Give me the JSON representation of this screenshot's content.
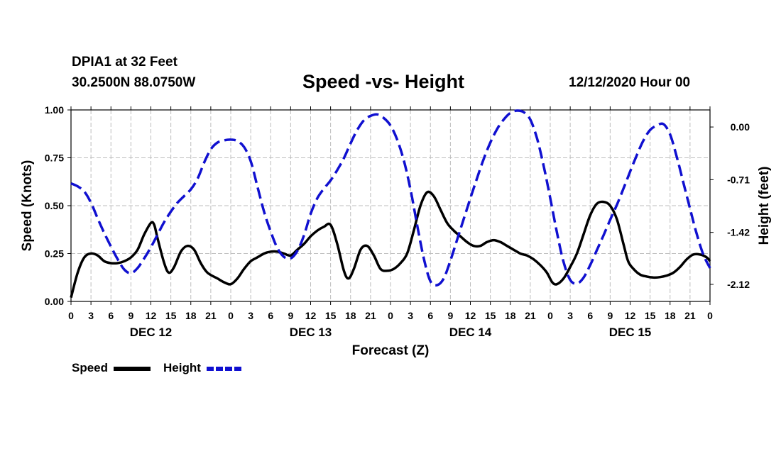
{
  "header": {
    "station": "DPIA1 at 32 Feet",
    "coordinates": "30.2500N 88.0750W",
    "date": "12/12/2020 Hour 00"
  },
  "legend": {
    "speed_label": "Speed",
    "height_label": "Height"
  },
  "colors": {
    "speed": "#000000",
    "height": "#1010d0",
    "grid": "#bdbdbd"
  },
  "chart_data": {
    "type": "line",
    "title": "Speed -vs- Height",
    "xlabel": "Forecast (Z)",
    "ylabel": "Speed (Knots)",
    "y2label": "Height (feet)",
    "grid": true,
    "legend_position": "bottom-left",
    "x_range_hours": [
      0,
      96
    ],
    "ylim": [
      0,
      1
    ],
    "y2lim": [
      -2.35,
      0.23
    ],
    "x_ticks": [
      {
        "hour": 0,
        "label": "0"
      },
      {
        "hour": 3,
        "label": "3"
      },
      {
        "hour": 6,
        "label": "6"
      },
      {
        "hour": 9,
        "label": "9"
      },
      {
        "hour": 12,
        "label": "12"
      },
      {
        "hour": 15,
        "label": "15"
      },
      {
        "hour": 18,
        "label": "18"
      },
      {
        "hour": 21,
        "label": "21"
      },
      {
        "hour": 24,
        "label": "0"
      },
      {
        "hour": 27,
        "label": "3"
      },
      {
        "hour": 30,
        "label": "6"
      },
      {
        "hour": 33,
        "label": "9"
      },
      {
        "hour": 36,
        "label": "12"
      },
      {
        "hour": 39,
        "label": "15"
      },
      {
        "hour": 42,
        "label": "18"
      },
      {
        "hour": 45,
        "label": "21"
      },
      {
        "hour": 48,
        "label": "0"
      },
      {
        "hour": 51,
        "label": "3"
      },
      {
        "hour": 54,
        "label": "6"
      },
      {
        "hour": 57,
        "label": "9"
      },
      {
        "hour": 60,
        "label": "12"
      },
      {
        "hour": 63,
        "label": "15"
      },
      {
        "hour": 66,
        "label": "18"
      },
      {
        "hour": 69,
        "label": "21"
      },
      {
        "hour": 72,
        "label": "0"
      },
      {
        "hour": 75,
        "label": "3"
      },
      {
        "hour": 78,
        "label": "6"
      },
      {
        "hour": 81,
        "label": "9"
      },
      {
        "hour": 84,
        "label": "12"
      },
      {
        "hour": 87,
        "label": "15"
      },
      {
        "hour": 90,
        "label": "18"
      },
      {
        "hour": 93,
        "label": "21"
      },
      {
        "hour": 96,
        "label": "0"
      }
    ],
    "day_labels": [
      {
        "hour": 12,
        "label": "DEC 12"
      },
      {
        "hour": 36,
        "label": "DEC 13"
      },
      {
        "hour": 60,
        "label": "DEC 14"
      },
      {
        "hour": 84,
        "label": "DEC 15"
      }
    ],
    "y_ticks": [
      {
        "value": 0.0,
        "label": "0.00"
      },
      {
        "value": 0.25,
        "label": "0.25"
      },
      {
        "value": 0.5,
        "label": "0.50"
      },
      {
        "value": 0.75,
        "label": "0.75"
      },
      {
        "value": 1.0,
        "label": "1.00"
      }
    ],
    "y2_ticks": [
      {
        "value": 0.0,
        "label": "0.00"
      },
      {
        "value": -0.71,
        "label": "-0.71"
      },
      {
        "value": -1.42,
        "label": "-1.42"
      },
      {
        "value": -2.12,
        "label": "-2.12"
      }
    ],
    "series": [
      {
        "name": "Speed",
        "axis": "left",
        "style": "solid",
        "points": [
          [
            0,
            0.02
          ],
          [
            1,
            0.15
          ],
          [
            2,
            0.23
          ],
          [
            3,
            0.25
          ],
          [
            4,
            0.24
          ],
          [
            5,
            0.21
          ],
          [
            6,
            0.2
          ],
          [
            7,
            0.2
          ],
          [
            8,
            0.21
          ],
          [
            9,
            0.23
          ],
          [
            10,
            0.27
          ],
          [
            11,
            0.35
          ],
          [
            12,
            0.41
          ],
          [
            12.5,
            0.4
          ],
          [
            13,
            0.33
          ],
          [
            14,
            0.2
          ],
          [
            14.7,
            0.15
          ],
          [
            15.5,
            0.18
          ],
          [
            16.5,
            0.26
          ],
          [
            17.5,
            0.29
          ],
          [
            18.5,
            0.27
          ],
          [
            19.5,
            0.2
          ],
          [
            20.5,
            0.15
          ],
          [
            22,
            0.12
          ],
          [
            23,
            0.1
          ],
          [
            24,
            0.09
          ],
          [
            25,
            0.12
          ],
          [
            26,
            0.17
          ],
          [
            27,
            0.21
          ],
          [
            28,
            0.23
          ],
          [
            29,
            0.25
          ],
          [
            30,
            0.26
          ],
          [
            31,
            0.26
          ],
          [
            32,
            0.25
          ],
          [
            33,
            0.24
          ],
          [
            34,
            0.27
          ],
          [
            35,
            0.3
          ],
          [
            36,
            0.34
          ],
          [
            37,
            0.37
          ],
          [
            38,
            0.39
          ],
          [
            39,
            0.4
          ],
          [
            40,
            0.3
          ],
          [
            41,
            0.16
          ],
          [
            41.7,
            0.12
          ],
          [
            42.5,
            0.17
          ],
          [
            43.5,
            0.27
          ],
          [
            44.5,
            0.29
          ],
          [
            45.5,
            0.24
          ],
          [
            46.5,
            0.17
          ],
          [
            47.5,
            0.16
          ],
          [
            48.5,
            0.17
          ],
          [
            49.5,
            0.2
          ],
          [
            50.5,
            0.25
          ],
          [
            51.5,
            0.37
          ],
          [
            52.5,
            0.5
          ],
          [
            53.5,
            0.57
          ],
          [
            54.5,
            0.55
          ],
          [
            55.5,
            0.48
          ],
          [
            56.5,
            0.41
          ],
          [
            57.5,
            0.37
          ],
          [
            58.5,
            0.34
          ],
          [
            59.5,
            0.31
          ],
          [
            60.5,
            0.29
          ],
          [
            61.5,
            0.29
          ],
          [
            62.5,
            0.31
          ],
          [
            63.5,
            0.32
          ],
          [
            64.5,
            0.31
          ],
          [
            65.5,
            0.29
          ],
          [
            66.5,
            0.27
          ],
          [
            67.5,
            0.25
          ],
          [
            68.5,
            0.24
          ],
          [
            69.5,
            0.22
          ],
          [
            70.5,
            0.19
          ],
          [
            71.5,
            0.15
          ],
          [
            72.3,
            0.1
          ],
          [
            73,
            0.09
          ],
          [
            74,
            0.12
          ],
          [
            75,
            0.18
          ],
          [
            76,
            0.25
          ],
          [
            77,
            0.35
          ],
          [
            78,
            0.45
          ],
          [
            79,
            0.51
          ],
          [
            80,
            0.52
          ],
          [
            81,
            0.5
          ],
          [
            82,
            0.43
          ],
          [
            83,
            0.3
          ],
          [
            83.7,
            0.21
          ],
          [
            84.5,
            0.17
          ],
          [
            85.5,
            0.14
          ],
          [
            86.5,
            0.13
          ],
          [
            87.5,
            0.125
          ],
          [
            88.5,
            0.127
          ],
          [
            89.5,
            0.135
          ],
          [
            90.5,
            0.15
          ],
          [
            91.5,
            0.18
          ],
          [
            92.5,
            0.22
          ],
          [
            93.5,
            0.245
          ],
          [
            94.5,
            0.245
          ],
          [
            95.5,
            0.23
          ],
          [
            96,
            0.21
          ]
        ]
      },
      {
        "name": "Height",
        "axis": "right",
        "style": "dashed",
        "points": [
          [
            0,
            -0.76
          ],
          [
            1,
            -0.8
          ],
          [
            2,
            -0.87
          ],
          [
            3,
            -1.02
          ],
          [
            4,
            -1.23
          ],
          [
            5,
            -1.43
          ],
          [
            6,
            -1.61
          ],
          [
            7,
            -1.78
          ],
          [
            8,
            -1.92
          ],
          [
            9,
            -1.97
          ],
          [
            10,
            -1.9
          ],
          [
            11,
            -1.77
          ],
          [
            12,
            -1.62
          ],
          [
            13,
            -1.45
          ],
          [
            14,
            -1.28
          ],
          [
            15,
            -1.14
          ],
          [
            16,
            -1.02
          ],
          [
            17,
            -0.93
          ],
          [
            18,
            -0.84
          ],
          [
            19,
            -0.7
          ],
          [
            20,
            -0.48
          ],
          [
            21,
            -0.3
          ],
          [
            22,
            -0.21
          ],
          [
            23,
            -0.18
          ],
          [
            24,
            -0.17
          ],
          [
            25,
            -0.19
          ],
          [
            26,
            -0.27
          ],
          [
            27,
            -0.46
          ],
          [
            28,
            -0.8
          ],
          [
            29,
            -1.14
          ],
          [
            30,
            -1.41
          ],
          [
            31,
            -1.63
          ],
          [
            32,
            -1.75
          ],
          [
            33,
            -1.77
          ],
          [
            34,
            -1.67
          ],
          [
            35,
            -1.46
          ],
          [
            36,
            -1.17
          ],
          [
            37,
            -0.96
          ],
          [
            38,
            -0.83
          ],
          [
            39,
            -0.72
          ],
          [
            40,
            -0.58
          ],
          [
            41,
            -0.42
          ],
          [
            42,
            -0.22
          ],
          [
            43,
            -0.04
          ],
          [
            44,
            0.09
          ],
          [
            45,
            0.15
          ],
          [
            46,
            0.17
          ],
          [
            47,
            0.12
          ],
          [
            48,
            0.02
          ],
          [
            49,
            -0.17
          ],
          [
            50,
            -0.45
          ],
          [
            51,
            -0.84
          ],
          [
            52,
            -1.32
          ],
          [
            53,
            -1.77
          ],
          [
            54,
            -2.08
          ],
          [
            55,
            -2.13
          ],
          [
            56,
            -2.04
          ],
          [
            57,
            -1.8
          ],
          [
            58,
            -1.52
          ],
          [
            59,
            -1.24
          ],
          [
            60,
            -0.96
          ],
          [
            61,
            -0.69
          ],
          [
            62,
            -0.43
          ],
          [
            63,
            -0.21
          ],
          [
            64,
            -0.03
          ],
          [
            65,
            0.1
          ],
          [
            66,
            0.19
          ],
          [
            67,
            0.22
          ],
          [
            68,
            0.2
          ],
          [
            69,
            0.1
          ],
          [
            70,
            -0.15
          ],
          [
            71,
            -0.52
          ],
          [
            72,
            -0.96
          ],
          [
            73,
            -1.42
          ],
          [
            74,
            -1.82
          ],
          [
            75,
            -2.06
          ],
          [
            76,
            -2.11
          ],
          [
            77,
            -2.03
          ],
          [
            78,
            -1.86
          ],
          [
            79,
            -1.66
          ],
          [
            80,
            -1.46
          ],
          [
            81,
            -1.25
          ],
          [
            82,
            -1.05
          ],
          [
            83,
            -0.83
          ],
          [
            84,
            -0.6
          ],
          [
            85,
            -0.38
          ],
          [
            86,
            -0.18
          ],
          [
            87,
            -0.04
          ],
          [
            88,
            0.02
          ],
          [
            89,
            0.04
          ],
          [
            90,
            -0.1
          ],
          [
            91,
            -0.4
          ],
          [
            92,
            -0.75
          ],
          [
            93,
            -1.1
          ],
          [
            94,
            -1.44
          ],
          [
            95,
            -1.72
          ],
          [
            96,
            -1.9
          ]
        ]
      }
    ]
  }
}
